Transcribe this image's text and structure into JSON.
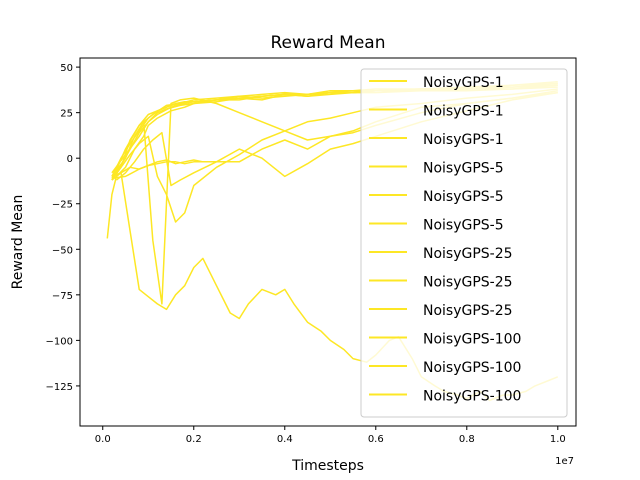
{
  "chart_data": {
    "type": "line",
    "title": "Reward Mean",
    "xlabel": "Timesteps",
    "ylabel": "Reward Mean",
    "x_offset_label": "1e7",
    "xlim": [
      -0.05,
      1.04
    ],
    "ylim": [
      -147,
      55
    ],
    "xticks": [
      0.0,
      0.2,
      0.4,
      0.6,
      0.8,
      1.0
    ],
    "xtick_labels": [
      "0.0",
      "0.2",
      "0.4",
      "0.6",
      "0.8",
      "1.0"
    ],
    "yticks": [
      50,
      25,
      0,
      -25,
      -50,
      -75,
      -100,
      -125
    ],
    "ytick_labels": [
      "50",
      "25",
      "0",
      "−25",
      "−50",
      "−75",
      "−100",
      "−125"
    ],
    "grid": false,
    "legend_position": "right",
    "line_color": "#fde725",
    "series": [
      {
        "name": "NoisyGPS-1",
        "x": [
          0.01,
          0.02,
          0.03,
          0.05,
          0.07,
          0.09,
          0.1,
          0.12,
          0.15,
          0.18,
          0.2,
          0.25,
          0.3,
          0.35,
          0.4,
          0.45,
          0.5,
          0.55,
          0.6,
          0.7,
          0.8,
          0.9,
          1.0
        ],
        "y": [
          -44,
          -20,
          -10,
          -5,
          5,
          12,
          18,
          22,
          26,
          28,
          30,
          31,
          33,
          32,
          35,
          34,
          36,
          36,
          37,
          38,
          38,
          40,
          42
        ]
      },
      {
        "name": "NoisyGPS-1",
        "x": [
          0.02,
          0.04,
          0.06,
          0.08,
          0.1,
          0.12,
          0.14,
          0.16,
          0.18,
          0.2,
          0.25,
          0.3,
          0.35,
          0.4,
          0.45,
          0.5,
          0.55,
          0.6,
          0.7,
          0.8,
          0.9,
          1.0
        ],
        "y": [
          -10,
          0,
          8,
          15,
          22,
          26,
          28,
          30,
          31,
          31,
          32,
          32,
          34,
          35,
          34,
          35,
          36,
          36,
          37,
          37,
          38,
          39
        ]
      },
      {
        "name": "NoisyGPS-1",
        "x": [
          0.02,
          0.05,
          0.08,
          0.11,
          0.14,
          0.17,
          0.2,
          0.25,
          0.3,
          0.35,
          0.4,
          0.45,
          0.5,
          0.55,
          0.6,
          0.7,
          0.8,
          0.9,
          1.0
        ],
        "y": [
          -12,
          5,
          18,
          24,
          29,
          30,
          32,
          33,
          34,
          35,
          36,
          35,
          37,
          37,
          38,
          38,
          39,
          40,
          41
        ]
      },
      {
        "name": "NoisyGPS-5",
        "x": [
          0.02,
          0.05,
          0.08,
          0.1,
          0.12,
          0.15,
          0.18,
          0.2,
          0.25,
          0.3,
          0.35,
          0.4,
          0.45,
          0.5,
          0.55,
          0.6,
          0.7,
          0.8,
          0.9,
          1.0
        ],
        "y": [
          -8,
          2,
          12,
          20,
          24,
          28,
          30,
          31,
          32,
          34,
          33,
          34,
          35,
          36,
          36,
          37,
          37,
          38,
          38,
          40
        ]
      },
      {
        "name": "NoisyGPS-5",
        "x": [
          0.02,
          0.04,
          0.06,
          0.08,
          0.1,
          0.12,
          0.14,
          0.17,
          0.2,
          0.25,
          0.3,
          0.35,
          0.4,
          0.45,
          0.5,
          0.55,
          0.6,
          0.7,
          0.8,
          0.9,
          1.0
        ],
        "y": [
          -10,
          -4,
          5,
          14,
          20,
          25,
          27,
          29,
          30,
          32,
          33,
          34,
          35,
          35,
          36,
          36,
          37,
          38,
          38,
          39,
          40
        ]
      },
      {
        "name": "NoisyGPS-5",
        "x": [
          0.02,
          0.04,
          0.06,
          0.08,
          0.1,
          0.12,
          0.15,
          0.2,
          0.25,
          0.3,
          0.35,
          0.4,
          0.45,
          0.5,
          0.55,
          0.6,
          0.7,
          0.8,
          0.9,
          1.0
        ],
        "y": [
          -12,
          -5,
          10,
          18,
          24,
          26,
          29,
          31,
          32,
          33,
          34,
          35,
          35,
          36,
          37,
          37,
          38,
          38,
          39,
          41
        ]
      },
      {
        "name": "NoisyGPS-25",
        "x": [
          0.02,
          0.05,
          0.08,
          0.1,
          0.12,
          0.14,
          0.16,
          0.18,
          0.2,
          0.22,
          0.25,
          0.3,
          0.35,
          0.4,
          0.45,
          0.5,
          0.55,
          0.6,
          0.7,
          0.8,
          0.9,
          1.0
        ],
        "y": [
          -11,
          -10,
          -6,
          -4,
          -2,
          -1,
          -3,
          -2,
          -1,
          -2,
          -2,
          -2,
          5,
          10,
          5,
          12,
          15,
          20,
          28,
          30,
          33,
          36
        ]
      },
      {
        "name": "NoisyGPS-25",
        "x": [
          0.02,
          0.05,
          0.07,
          0.09,
          0.11,
          0.13,
          0.15,
          0.17,
          0.2,
          0.25,
          0.3,
          0.35,
          0.4,
          0.45,
          0.5,
          0.55,
          0.6,
          0.7,
          0.8,
          0.9,
          1.0
        ],
        "y": [
          -10,
          0,
          12,
          20,
          -45,
          -80,
          30,
          32,
          33,
          30,
          25,
          20,
          15,
          10,
          12,
          14,
          18,
          25,
          30,
          33,
          37
        ]
      },
      {
        "name": "NoisyGPS-25",
        "x": [
          0.03,
          0.05,
          0.07,
          0.09,
          0.11,
          0.13,
          0.15,
          0.17,
          0.2,
          0.25,
          0.3,
          0.35,
          0.4,
          0.45,
          0.5,
          0.55,
          0.6,
          0.7,
          0.8,
          0.9,
          1.0
        ],
        "y": [
          -12,
          -8,
          -2,
          5,
          10,
          14,
          -15,
          -12,
          -8,
          -2,
          5,
          0,
          -10,
          -3,
          5,
          8,
          12,
          20,
          26,
          32,
          36
        ]
      },
      {
        "name": "NoisyGPS-100",
        "x": [
          0.02,
          0.04,
          0.06,
          0.08,
          0.1,
          0.12,
          0.14,
          0.16,
          0.18,
          0.2,
          0.22,
          0.25,
          0.28,
          0.3,
          0.32,
          0.35,
          0.38,
          0.4,
          0.42,
          0.45,
          0.48,
          0.5,
          0.53,
          0.55,
          0.58,
          0.6,
          0.63,
          0.65,
          0.68,
          0.7,
          0.73,
          0.75,
          0.78,
          0.8,
          0.83,
          0.85,
          0.88,
          0.9,
          0.93,
          0.95,
          0.98,
          1.0
        ],
        "y": [
          -10,
          -8,
          -40,
          -72,
          -76,
          -80,
          -83,
          -75,
          -70,
          -60,
          -55,
          -70,
          -85,
          -88,
          -80,
          -72,
          -75,
          -72,
          -80,
          -90,
          -95,
          -100,
          -105,
          -110,
          -112,
          -108,
          -100,
          -98,
          -110,
          -120,
          -125,
          -128,
          -130,
          -132,
          -128,
          -133,
          -130,
          -130,
          -128,
          -125,
          -122,
          -120
        ]
      },
      {
        "name": "NoisyGPS-100",
        "x": [
          0.02,
          0.04,
          0.06,
          0.08,
          0.1,
          0.12,
          0.14,
          0.16,
          0.18,
          0.2,
          0.25,
          0.3
        ],
        "y": [
          -12,
          -8,
          -5,
          -6,
          -4,
          -3,
          -2,
          -2,
          -3,
          -2,
          -2,
          -2
        ]
      },
      {
        "name": "NoisyGPS-100",
        "x": [
          0.02,
          0.04,
          0.06,
          0.08,
          0.1,
          0.12,
          0.14,
          0.16,
          0.18,
          0.2,
          0.25,
          0.3,
          0.35,
          0.4,
          0.45,
          0.5,
          0.55,
          0.6,
          0.7,
          0.8,
          0.9,
          1.0
        ],
        "y": [
          -11,
          -5,
          2,
          8,
          12,
          -10,
          -20,
          -35,
          -30,
          -15,
          -5,
          2,
          10,
          15,
          20,
          22,
          25,
          28,
          30,
          33,
          35,
          38
        ]
      }
    ]
  }
}
